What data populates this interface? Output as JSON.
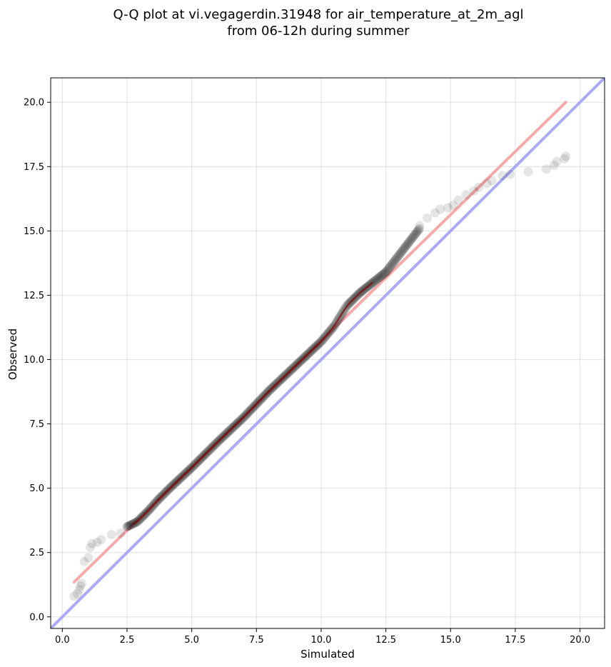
{
  "chart_data": {
    "type": "scatter",
    "title_line1": "Q-Q plot at vi.vegagerdin.31948 for air_temperature_at_2m_agl",
    "title_line2": "from 06-12h during summer",
    "xlabel": "Simulated",
    "ylabel": "Observed",
    "xlim": [
      -0.45,
      20.95
    ],
    "ylim": [
      -0.45,
      20.95
    ],
    "xticks": [
      0.0,
      2.5,
      5.0,
      7.5,
      10.0,
      12.5,
      15.0,
      17.5,
      20.0
    ],
    "yticks": [
      0.0,
      2.5,
      5.0,
      7.5,
      10.0,
      12.5,
      15.0,
      17.5,
      20.0
    ],
    "xtick_labels": [
      "0.0",
      "2.5",
      "5.0",
      "7.5",
      "10.0",
      "12.5",
      "15.0",
      "17.5",
      "20.0"
    ],
    "ytick_labels": [
      "0.0",
      "2.5",
      "5.0",
      "7.5",
      "10.0",
      "12.5",
      "15.0",
      "17.5",
      "20.0"
    ],
    "grid": true,
    "reference_line": {
      "x": [
        -0.45,
        20.95
      ],
      "y": [
        -0.45,
        20.95
      ],
      "color": "#aaaaf8"
    },
    "fit_line": {
      "x": [
        0.45,
        19.45
      ],
      "y": [
        1.35,
        20.0
      ],
      "color": "#f7aaaa"
    },
    "marker_color": "#000000",
    "inner_line_color": "#8b0000",
    "quantile_anchors": [
      [
        0.45,
        0.8
      ],
      [
        0.58,
        0.9
      ],
      [
        0.65,
        1.05
      ],
      [
        0.7,
        1.2
      ],
      [
        0.75,
        1.3
      ],
      [
        0.85,
        2.15
      ],
      [
        1.0,
        2.3
      ],
      [
        1.08,
        2.7
      ],
      [
        1.15,
        2.85
      ],
      [
        1.4,
        2.95
      ],
      [
        1.5,
        3.0
      ],
      [
        1.9,
        3.2
      ],
      [
        2.3,
        3.3
      ],
      [
        2.5,
        3.5
      ],
      [
        2.9,
        3.7
      ],
      [
        3.3,
        4.1
      ],
      [
        3.7,
        4.55
      ],
      [
        4.2,
        5.05
      ],
      [
        5.0,
        5.8
      ],
      [
        6.0,
        6.8
      ],
      [
        7.0,
        7.75
      ],
      [
        8.0,
        8.8
      ],
      [
        9.0,
        9.75
      ],
      [
        10.0,
        10.7
      ],
      [
        10.5,
        11.3
      ],
      [
        11.0,
        12.1
      ],
      [
        11.5,
        12.6
      ],
      [
        12.0,
        13.0
      ],
      [
        12.5,
        13.4
      ],
      [
        13.0,
        14.05
      ],
      [
        13.5,
        14.7
      ],
      [
        14.0,
        15.35
      ],
      [
        14.5,
        15.8
      ],
      [
        15.0,
        16.0
      ],
      [
        15.5,
        16.35
      ],
      [
        16.0,
        16.7
      ],
      [
        16.5,
        16.95
      ],
      [
        17.0,
        17.15
      ],
      [
        17.4,
        17.25
      ],
      [
        18.0,
        17.35
      ],
      [
        18.8,
        17.45
      ],
      [
        19.0,
        17.6
      ],
      [
        19.45,
        17.85
      ]
    ],
    "sparse_points": [
      [
        0.45,
        0.8
      ],
      [
        0.58,
        0.9
      ],
      [
        0.65,
        1.05
      ],
      [
        0.7,
        1.2
      ],
      [
        0.75,
        1.3
      ],
      [
        0.85,
        2.15
      ],
      [
        1.0,
        2.3
      ],
      [
        1.08,
        2.7
      ],
      [
        1.15,
        2.85
      ],
      [
        1.35,
        2.9
      ],
      [
        1.5,
        3.0
      ],
      [
        1.9,
        3.2
      ],
      [
        2.25,
        3.25
      ],
      [
        2.5,
        3.5
      ],
      [
        13.8,
        15.2
      ],
      [
        14.1,
        15.5
      ],
      [
        14.4,
        15.7
      ],
      [
        14.6,
        15.85
      ],
      [
        14.9,
        15.9
      ],
      [
        15.1,
        16.0
      ],
      [
        15.3,
        16.2
      ],
      [
        15.6,
        16.4
      ],
      [
        15.9,
        16.55
      ],
      [
        16.1,
        16.7
      ],
      [
        16.4,
        16.85
      ],
      [
        16.6,
        16.95
      ],
      [
        17.0,
        17.15
      ],
      [
        17.3,
        17.2
      ],
      [
        18.0,
        17.3
      ],
      [
        18.7,
        17.4
      ],
      [
        19.0,
        17.55
      ],
      [
        19.1,
        17.7
      ],
      [
        19.4,
        17.8
      ],
      [
        19.45,
        17.9
      ]
    ],
    "dense_point_count": 400
  }
}
